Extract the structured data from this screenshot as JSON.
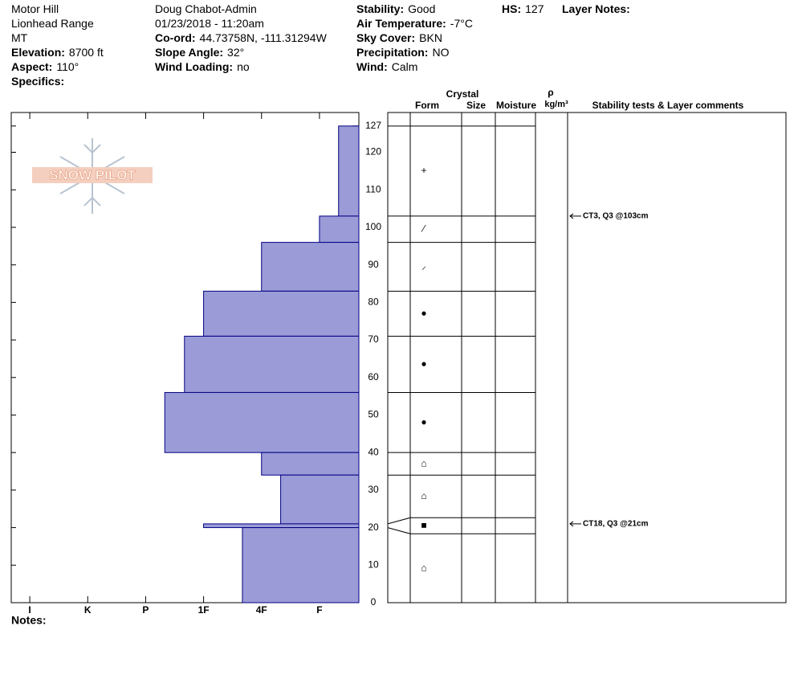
{
  "header": {
    "columns": [
      [
        {
          "value": "Motor Hill"
        },
        {
          "value": "Lionhead Range"
        },
        {
          "value": "MT"
        },
        {
          "label": "Elevation:",
          "value": "8700 ft"
        },
        {
          "label": "Aspect:",
          "value": "110°"
        },
        {
          "label": "Specifics:"
        }
      ],
      [
        {
          "value": "Doug Chabot-Admin"
        },
        {
          "value": "01/23/2018 - 11:20am"
        },
        {
          "label": "Co-ord:",
          "value": "44.73758N, -111.31294W"
        },
        {
          "label": "Slope Angle:",
          "value": "32°"
        },
        {
          "label": "Wind Loading:",
          "value": "no"
        }
      ],
      [
        {
          "label": "Stability:",
          "value": "Good"
        },
        {
          "label": "Air Temperature:",
          "value": "-7°C"
        },
        {
          "label": "Sky Cover:",
          "value": "BKN"
        },
        {
          "label": "Precipitation:",
          "value": "NO"
        },
        {
          "label": "Wind:",
          "value": "Calm"
        }
      ],
      [
        {
          "label": "HS:",
          "value": "127"
        }
      ],
      [
        {
          "label": "Layer Notes:"
        }
      ]
    ]
  },
  "logo": "SNOW PILOT",
  "notes": "Notes:",
  "chart_data": {
    "type": "snow-profile",
    "color": "#9b9bd8",
    "ylim": [
      0,
      130.6
    ],
    "yticks": [
      0,
      10,
      20,
      30,
      40,
      50,
      60,
      70,
      80,
      90,
      100,
      110,
      120,
      127
    ],
    "xlim": [
      6.32,
      0.32
    ],
    "xticks": [
      {
        "value": 6,
        "label": "I"
      },
      {
        "value": 5,
        "label": "K"
      },
      {
        "value": 4,
        "label": "P"
      },
      {
        "value": 3,
        "label": "1F"
      },
      {
        "value": 2,
        "label": "4F"
      },
      {
        "value": 1,
        "label": "F"
      }
    ],
    "layers": [
      {
        "top": 127,
        "bottom": 103,
        "hardness": 0.67,
        "form": "+"
      },
      {
        "top": 103,
        "bottom": 96,
        "hardness": 1,
        "form": "⁄"
      },
      {
        "top": 96,
        "bottom": 83,
        "hardness": 2,
        "form": "⸝"
      },
      {
        "top": 83,
        "bottom": 71,
        "hardness": 3,
        "form": "●"
      },
      {
        "top": 71,
        "bottom": 56,
        "hardness": 3.33,
        "form": "●"
      },
      {
        "top": 56,
        "bottom": 40,
        "hardness": 3.67,
        "form": "●"
      },
      {
        "top": 40,
        "bottom": 34,
        "hardness": 2,
        "form": "⌂"
      },
      {
        "top": 34,
        "bottom": 21,
        "hardness": 1.67,
        "form": "⌂"
      },
      {
        "top": 21,
        "bottom": 20,
        "hardness": 3,
        "form": "■"
      },
      {
        "top": 20,
        "bottom": 0,
        "hardness": 2.33,
        "form": "⌂"
      }
    ],
    "tests": [
      {
        "depth": 103,
        "label": "CT3, Q3 @103cm"
      },
      {
        "depth": 21,
        "label": "CT18, Q3 @21cm"
      }
    ],
    "column_headers": {
      "crystal": "Crystal",
      "form": "Form",
      "size": "Size",
      "moisture": "Moisture",
      "rho": "ρ",
      "density_unit": "kg/m³",
      "comments": "Stability tests & Layer comments"
    }
  }
}
